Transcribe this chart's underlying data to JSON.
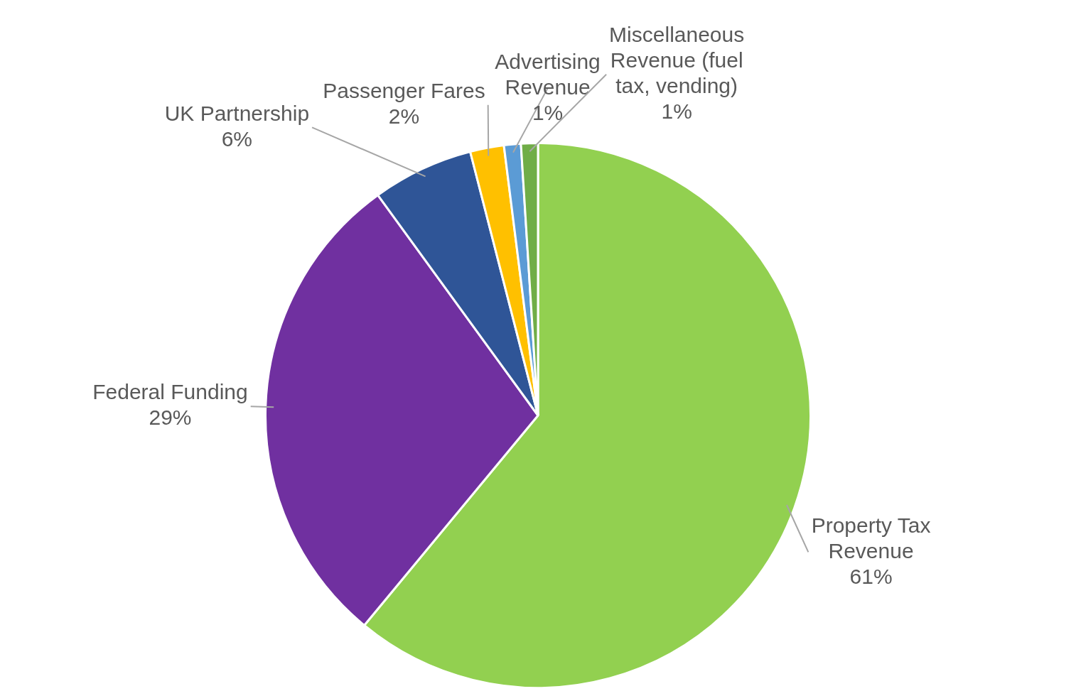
{
  "chart_data": {
    "type": "pie",
    "categories": [
      "Property Tax Revenue",
      "Federal Funding",
      "UK Partnership",
      "Passenger Fares",
      "Advertising Revenue",
      "Miscellaneous Revenue (fuel tax, vending)"
    ],
    "values": [
      61,
      29,
      6,
      2,
      1,
      1
    ],
    "value_labels": [
      "61%",
      "29%",
      "6%",
      "2%",
      "1%",
      "1%"
    ],
    "colors": [
      "#92d050",
      "#7030a0",
      "#2f5597",
      "#ffc000",
      "#5b9bd5",
      "#70ad47"
    ]
  }
}
